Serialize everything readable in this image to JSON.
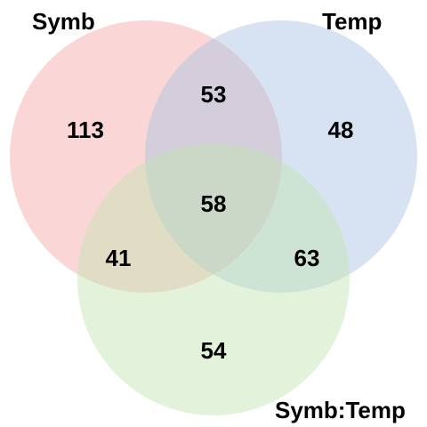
{
  "sets": [
    {
      "id": "A",
      "label": "Symb",
      "color": "#f4a7a3"
    },
    {
      "id": "B",
      "label": "Temp",
      "color": "#a7c1e3"
    },
    {
      "id": "C",
      "label": "Symb:Temp",
      "color": "#c2e4b0"
    }
  ],
  "regions": {
    "A_only": "113",
    "B_only": "48",
    "C_only": "54",
    "AB": "53",
    "AC": "41",
    "BC": "63",
    "ABC": "58"
  },
  "style": {
    "fill_opacity": 0.45,
    "background": "#ffffff",
    "text_color": "#000000"
  }
}
